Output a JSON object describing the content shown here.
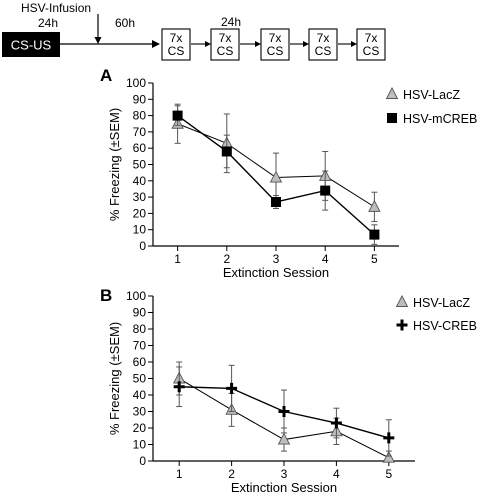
{
  "timeline": {
    "start_box": "CS-US",
    "infusion_label": "HSV-Infusion",
    "delay_before_infusion": "24h",
    "delay_after_infusion": "60h",
    "delay_between_sessions": "24h",
    "session_box_line1": "7x",
    "session_box_line2": "CS",
    "session_count": 5
  },
  "chart_data": [
    {
      "type": "line",
      "panel_label": "A",
      "xlabel": "Extinction Session",
      "ylabel": "% Freezing (±SEM)",
      "x": [
        1,
        2,
        3,
        4,
        5
      ],
      "xlim": [
        0.5,
        5.5
      ],
      "ylim": [
        0,
        100
      ],
      "yticks": [
        0,
        10,
        20,
        30,
        40,
        50,
        60,
        70,
        80,
        90,
        100
      ],
      "legend_position": "top-right",
      "series": [
        {
          "name": "HSV-LacZ",
          "marker": "triangle",
          "values": [
            75,
            63,
            42,
            43,
            24
          ],
          "err": [
            12,
            18,
            15,
            15,
            9
          ]
        },
        {
          "name": "HSV-mCREB",
          "marker": "square",
          "values": [
            80,
            58,
            27,
            34,
            7
          ],
          "err": [
            6,
            10,
            4,
            12,
            6
          ]
        }
      ]
    },
    {
      "type": "line",
      "panel_label": "B",
      "xlabel": "Extinction Session",
      "ylabel": "% Freezing (±SEM)",
      "x": [
        1,
        2,
        3,
        4,
        5
      ],
      "xlim": [
        0.5,
        5.5
      ],
      "ylim": [
        0,
        100
      ],
      "yticks": [
        0,
        10,
        20,
        30,
        40,
        50,
        60,
        70,
        80,
        90,
        100
      ],
      "legend_position": "top-right",
      "series": [
        {
          "name": "HSV-LacZ",
          "marker": "triangle",
          "values": [
            50,
            31,
            13,
            18,
            2
          ],
          "err": [
            10,
            10,
            7,
            8,
            4
          ]
        },
        {
          "name": "HSV-CREB",
          "marker": "cross",
          "values": [
            45,
            44,
            30,
            23,
            14
          ],
          "err": [
            12,
            14,
            13,
            9,
            11
          ]
        }
      ]
    }
  ]
}
